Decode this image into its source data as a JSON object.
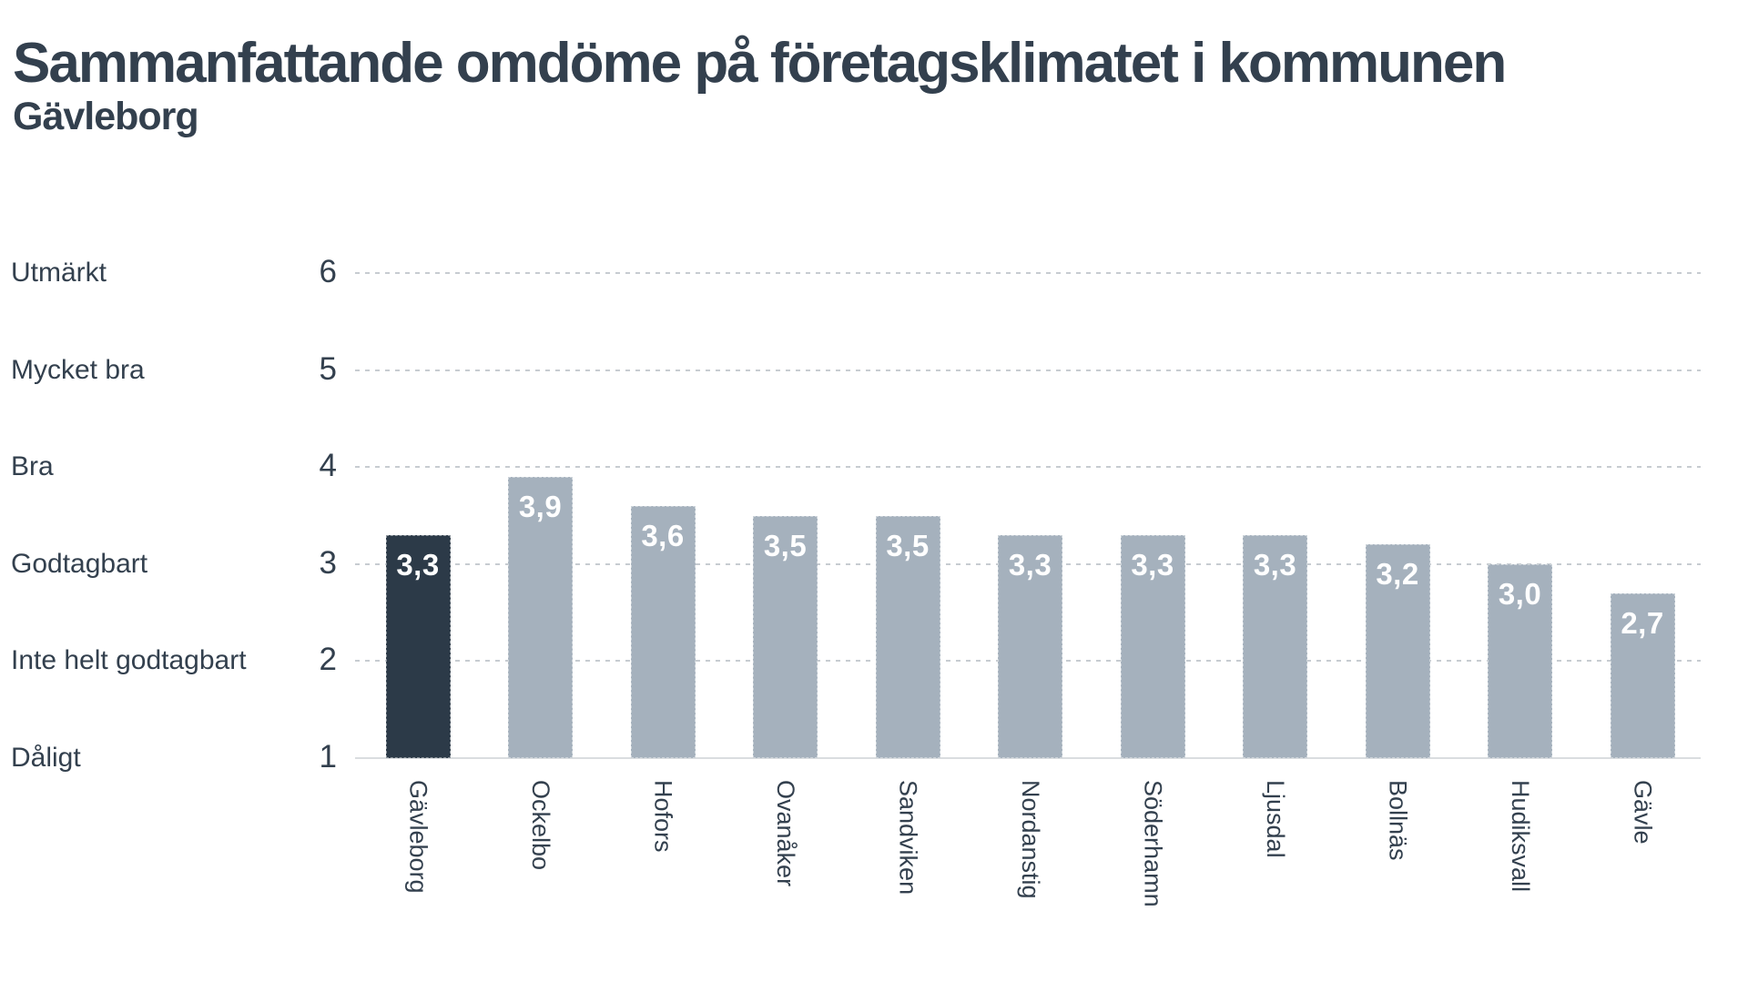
{
  "header": {
    "title": "Sammanfattande omdöme på företagsklimatet i kommunen",
    "subtitle": "Gävleborg"
  },
  "chart_data": {
    "type": "bar",
    "title": "Sammanfattande omdöme på företagsklimatet i kommunen",
    "subtitle": "Gävleborg",
    "categories": [
      "Gävleborg",
      "Ockelbo",
      "Hofors",
      "Ovanåker",
      "Sandviken",
      "Nordanstig",
      "Söderhamn",
      "Ljusdal",
      "Bollnäs",
      "Hudiksvall",
      "Gävle"
    ],
    "values": [
      3.3,
      3.9,
      3.6,
      3.5,
      3.5,
      3.3,
      3.3,
      3.3,
      3.2,
      3.0,
      2.7
    ],
    "value_labels": [
      "3,3",
      "3,9",
      "3,6",
      "3,5",
      "3,5",
      "3,3",
      "3,3",
      "3,3",
      "3,2",
      "3,0",
      "2,7"
    ],
    "highlight_index": 0,
    "xlabel": "",
    "ylabel": "",
    "ylim": [
      1,
      6
    ],
    "y_axis": {
      "ticks": [
        6,
        5,
        4,
        3,
        2,
        1
      ],
      "tick_names": [
        "Utmärkt",
        "Mycket bra",
        "Bra",
        "Godtagbart",
        "Inte helt godtagbart",
        "Dåligt"
      ]
    },
    "grid": "horizontal-dashed",
    "legend_position": "none",
    "colors": {
      "bar": "#a5b1bd",
      "bar_highlight": "#2c3a48",
      "text": "#33404e",
      "gridline": "#c7ccd1",
      "baseline": "#dadde0",
      "value_label": "#ffffff"
    }
  }
}
